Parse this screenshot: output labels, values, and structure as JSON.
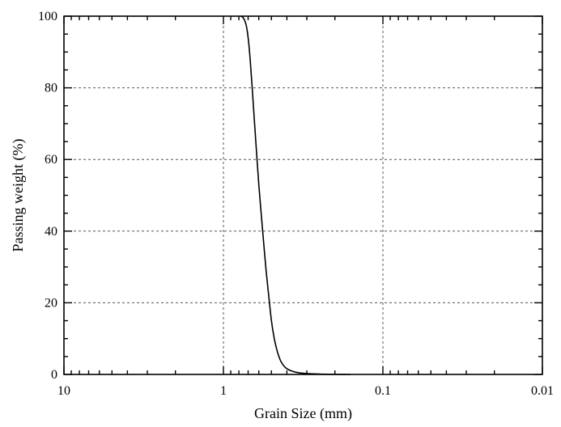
{
  "chart_data": {
    "type": "line",
    "title": "",
    "xlabel": "Grain Size (mm)",
    "ylabel": "Passing weight  (%)",
    "x_scale": "log",
    "x_reversed": true,
    "xlim": [
      10,
      0.01
    ],
    "ylim": [
      0,
      100
    ],
    "grid": true,
    "grid_style": "dashed",
    "x_ticks": [
      {
        "value": 10,
        "label": "10"
      },
      {
        "value": 1,
        "label": "1"
      },
      {
        "value": 0.1,
        "label": "0.1"
      },
      {
        "value": 0.01,
        "label": "0.01"
      }
    ],
    "y_ticks": [
      {
        "value": 0,
        "label": "0"
      },
      {
        "value": 20,
        "label": "20"
      },
      {
        "value": 40,
        "label": "40"
      },
      {
        "value": 60,
        "label": "60"
      },
      {
        "value": 80,
        "label": "80"
      },
      {
        "value": 100,
        "label": "100"
      }
    ],
    "series": [
      {
        "color": "#000000",
        "x": [
          0.78,
          0.75,
          0.72,
          0.7,
          0.68,
          0.66,
          0.64,
          0.62,
          0.6,
          0.58,
          0.56,
          0.54,
          0.52,
          0.5,
          0.48,
          0.46,
          0.44,
          0.42,
          0.4,
          0.37,
          0.34,
          0.3,
          0.25,
          0.2,
          0.16
        ],
        "y": [
          100,
          99.5,
          97.5,
          94,
          88,
          80,
          71,
          62,
          53,
          45,
          37,
          29,
          22,
          15,
          10,
          6.5,
          4,
          2.5,
          1.6,
          0.9,
          0.5,
          0.25,
          0.1,
          0.03,
          0
        ]
      }
    ]
  }
}
